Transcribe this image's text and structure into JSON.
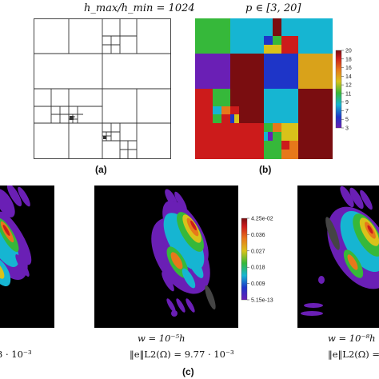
{
  "panel_a": {
    "title": "h_max/h_min = 1024",
    "caption": "(a)"
  },
  "panel_b": {
    "title": "p ∈ [3, 20]",
    "caption": "(b)",
    "colorbar_ticks": [
      "20",
      "18",
      "16",
      "14",
      "12",
      "11",
      "9",
      "7",
      "5",
      "3"
    ]
  },
  "panel_c": {
    "caption": "(c)",
    "colorbar_ticks": [
      "4.25e-02",
      "0.036",
      "0.027",
      "0.018",
      "0.009",
      "5.15e-13"
    ],
    "left_error_fragment": "3 · 10⁻³",
    "middle_w": "w = 10⁻⁵h",
    "middle_error": "‖e‖L2(Ω) = 9.77 · 10⁻³",
    "right_w": "w = 10⁻⁸h",
    "right_error_fragment": "‖e‖L2(Ω) = 9"
  },
  "colors": {
    "purple": "#6a1fb5",
    "blue": "#1e35c8",
    "cyan": "#16b5d2",
    "green": "#36b83a",
    "yellow": "#d9c21a",
    "orange": "#e7781a",
    "red": "#cc1b1b",
    "darkred": "#7a0d10"
  }
}
